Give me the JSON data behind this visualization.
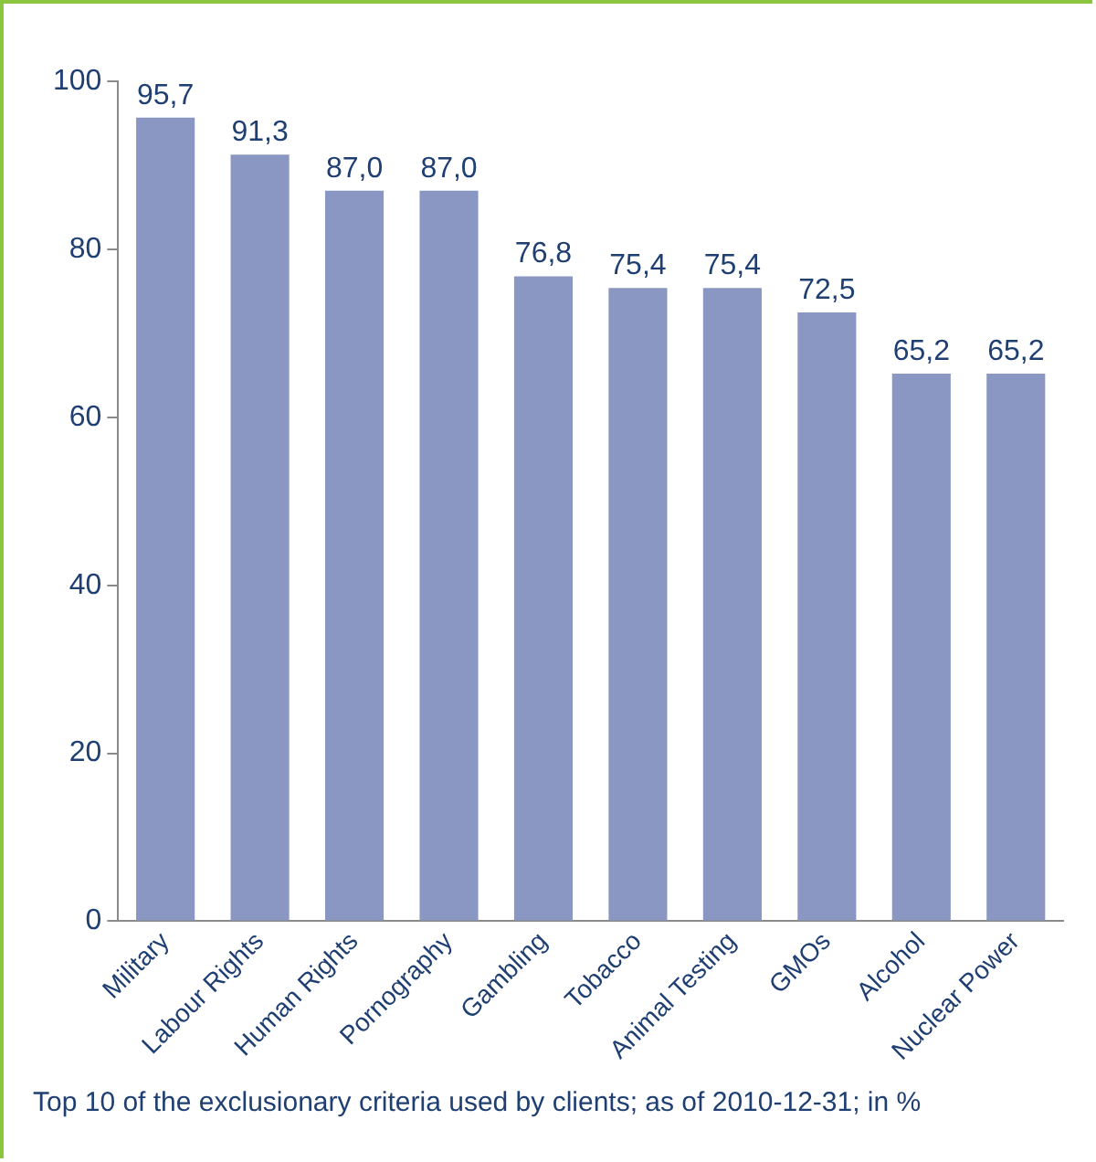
{
  "chart_data": {
    "type": "bar",
    "categories": [
      "Military",
      "Labour Rights",
      "Human Rights",
      "Pornography",
      "Gambling",
      "Tobacco",
      "Animal Testing",
      "GMOs",
      "Alcohol",
      "Nuclear Power"
    ],
    "values": [
      95.7,
      91.3,
      87.0,
      87.0,
      76.8,
      75.4,
      75.4,
      72.5,
      65.2,
      65.2
    ],
    "value_labels": [
      "95,7",
      "91,3",
      "87,0",
      "87,0",
      "76,8",
      "75,4",
      "75,4",
      "72,5",
      "65,2",
      "65,2"
    ],
    "color": "#8a97c2",
    "ylim": [
      0,
      100
    ],
    "yticks": [
      0,
      20,
      40,
      60,
      80,
      100
    ],
    "grid": false,
    "legend": false,
    "annotations": [
      "Top 10 of the exclusionary criteria used by clients; as of 2010-12-31; in %"
    ]
  }
}
